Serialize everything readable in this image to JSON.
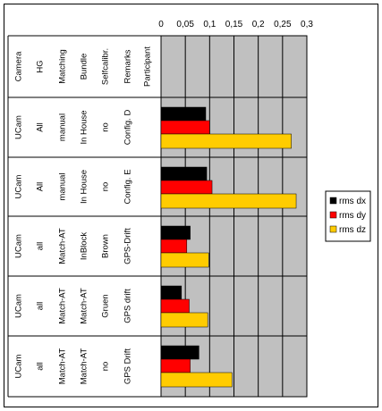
{
  "chart_data": {
    "type": "bar",
    "orientation": "horizontal",
    "x_ticks": [
      "0",
      "0,05",
      "0,1",
      "0,15",
      "0,2",
      "0,25",
      "0,3"
    ],
    "xlim": [
      0,
      0.3
    ],
    "grid": true,
    "legend_position": "right",
    "header_labels": [
      "Camera",
      "HG",
      "Matching",
      "Bundle",
      "Selfcalibr.",
      "Remarks",
      "Participant"
    ],
    "categories": [
      [
        "UCam",
        "All",
        "manual",
        "In House",
        "no",
        "Config. D"
      ],
      [
        "UCam",
        "All",
        "manual",
        "In House",
        "no",
        "Config. E"
      ],
      [
        "UCam",
        "all",
        "Match-AT",
        "InBlock",
        "Brown",
        "GPS-Drift"
      ],
      [
        "UCam",
        "all",
        "Match-AT",
        "Match-AT",
        "Gruen",
        "GPS drift"
      ],
      [
        "UCam",
        "all",
        "Match-AT",
        "Match-AT",
        "no",
        "GPS Drift"
      ]
    ],
    "series": [
      {
        "name": "rms dx",
        "color": "#000000",
        "values": [
          0.092,
          0.094,
          0.06,
          0.042,
          0.078
        ]
      },
      {
        "name": "rms dy",
        "color": "#ff0000",
        "values": [
          0.1,
          0.105,
          0.053,
          0.058,
          0.06
        ]
      },
      {
        "name": "rms dz",
        "color": "#ffcc00",
        "values": [
          0.268,
          0.278,
          0.098,
          0.096,
          0.146
        ]
      }
    ]
  }
}
